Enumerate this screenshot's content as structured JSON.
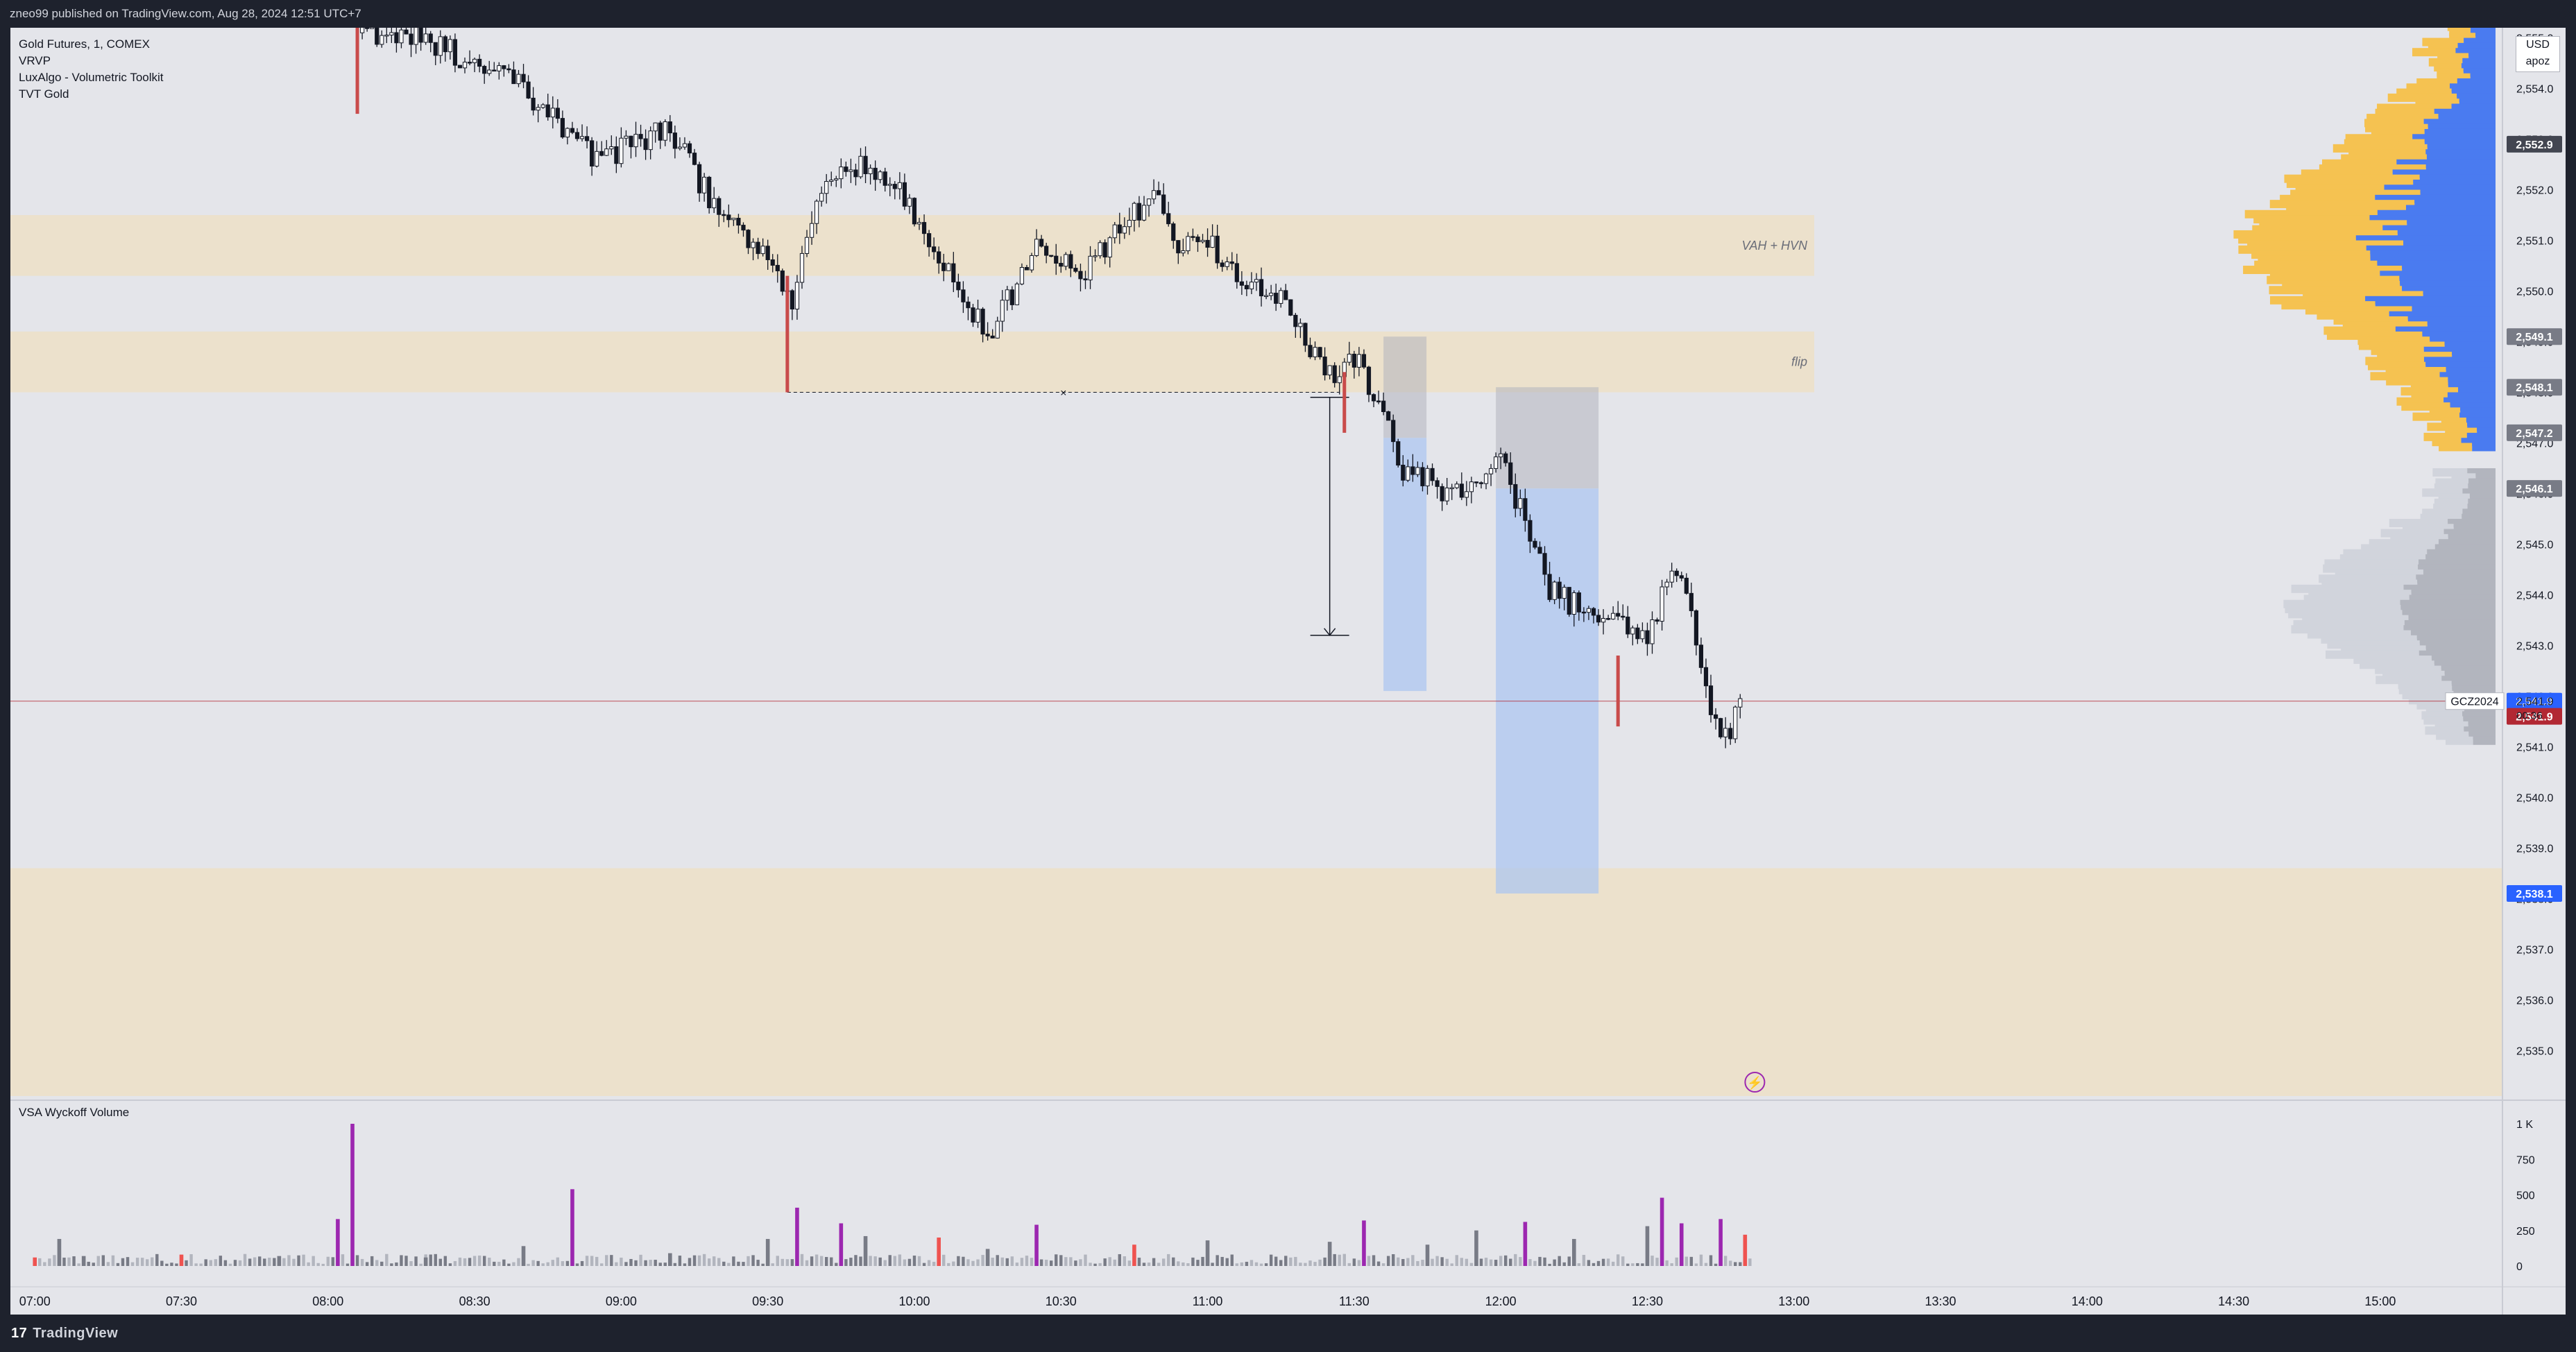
{
  "header": {
    "title": "zneo99 published on TradingView.com, Aug 28, 2024 12:51 UTC+7"
  },
  "legend": {
    "symbol": "Gold Futures, 1, COMEX",
    "indicators": [
      "VRVP",
      "LuxAlgo - Volumetric Toolkit",
      "TVT Gold"
    ]
  },
  "price_scale": {
    "currency": "USD",
    "mode": "apoz",
    "ticks": [
      "2,555.0",
      "2,554.0",
      "2,553.0",
      "2,552.0",
      "2,551.0",
      "2,550.0",
      "2,549.0",
      "2,548.0",
      "2,547.0",
      "2,546.0",
      "2,545.0",
      "2,544.0",
      "2,543.0",
      "2,542.0",
      "2,541.0",
      "2,540.0",
      "2,539.0",
      "2,538.0",
      "2,537.0",
      "2,536.0",
      "2,535.0"
    ],
    "badges": [
      {
        "price": 2552.9,
        "label": "2,552.9",
        "color": "#434651"
      },
      {
        "price": 2549.1,
        "label": "2,549.1",
        "color": "#787b86"
      },
      {
        "price": 2548.1,
        "label": "2,548.1",
        "color": "#787b86"
      },
      {
        "price": 2547.2,
        "label": "2,547.2",
        "color": "#787b86"
      },
      {
        "price": 2546.1,
        "label": "2,546.1",
        "color": "#787b86"
      },
      {
        "price": 2541.9,
        "label": "2,541.9",
        "color": "#2962ff"
      },
      {
        "price": 2541.6,
        "label": "2,541.9",
        "color": "#b22833"
      },
      {
        "price": 2538.1,
        "label": "2,538.1",
        "color": "#2962ff"
      }
    ],
    "last_price": {
      "symbol": "GCZ2024",
      "price": "2,541.9",
      "countdown": "00:36"
    }
  },
  "zones": [
    {
      "label": "VAH + HVN",
      "top": 2551.5,
      "bottom": 2550.3
    },
    {
      "label": "flip",
      "top": 2549.2,
      "bottom": 2548.0
    },
    {
      "label": "",
      "top": 2538.6,
      "bottom": 2534.1
    }
  ],
  "time_axis": {
    "labels": [
      "07:00",
      "07:30",
      "08:00",
      "08:30",
      "09:00",
      "09:30",
      "10:00",
      "10:30",
      "11:00",
      "11:30",
      "12:00",
      "12:30",
      "13:00",
      "13:30",
      "14:00",
      "14:30",
      "15:00"
    ]
  },
  "volume_pane": {
    "title": "VSA Wyckoff Volume",
    "ticks": [
      "1 K",
      "750",
      "500",
      "250",
      "0"
    ]
  },
  "colors": {
    "zone": "#ede0c7",
    "up_profile": "#f5c251",
    "down_profile": "#4a7bf0",
    "volume_climax": "#9c27b0",
    "volume_high": "#ef5350"
  },
  "footer": {
    "brand": "TradingView"
  },
  "chart_data": {
    "type": "candlestick",
    "x_range": [
      "06:55",
      "15:25"
    ],
    "ylim": [
      2534.1,
      2555.2
    ],
    "close_series": [
      {
        "t": "08:07",
        "v": 2555.1
      },
      {
        "t": "08:20",
        "v": 2555.0
      },
      {
        "t": "08:40",
        "v": 2554.0
      },
      {
        "t": "08:55",
        "v": 2552.6
      },
      {
        "t": "09:00",
        "v": 2552.8
      },
      {
        "t": "09:10",
        "v": 2553.2
      },
      {
        "t": "09:20",
        "v": 2551.5
      },
      {
        "t": "09:30",
        "v": 2550.8
      },
      {
        "t": "09:35",
        "v": 2549.8
      },
      {
        "t": "09:40",
        "v": 2551.6
      },
      {
        "t": "09:45",
        "v": 2552.6
      },
      {
        "t": "09:55",
        "v": 2552.2
      },
      {
        "t": "10:05",
        "v": 2550.7
      },
      {
        "t": "10:15",
        "v": 2549.1
      },
      {
        "t": "10:25",
        "v": 2550.8
      },
      {
        "t": "10:35",
        "v": 2550.4
      },
      {
        "t": "10:45",
        "v": 2551.6
      },
      {
        "t": "10:50",
        "v": 2551.8
      },
      {
        "t": "10:55",
        "v": 2550.8
      },
      {
        "t": "11:00",
        "v": 2551.0
      },
      {
        "t": "11:05",
        "v": 2550.3
      },
      {
        "t": "11:15",
        "v": 2549.8
      },
      {
        "t": "11:25",
        "v": 2548.3
      },
      {
        "t": "11:30",
        "v": 2548.7
      },
      {
        "t": "11:35",
        "v": 2547.7
      },
      {
        "t": "11:40",
        "v": 2546.5
      },
      {
        "t": "11:50",
        "v": 2546.0
      },
      {
        "t": "12:00",
        "v": 2546.6
      },
      {
        "t": "12:05",
        "v": 2545.5
      },
      {
        "t": "12:10",
        "v": 2544.1
      },
      {
        "t": "12:15",
        "v": 2543.8
      },
      {
        "t": "12:25",
        "v": 2543.5
      },
      {
        "t": "12:30",
        "v": 2543.0
      },
      {
        "t": "12:35",
        "v": 2544.7
      },
      {
        "t": "12:40",
        "v": 2543.2
      },
      {
        "t": "12:45",
        "v": 2541.0
      },
      {
        "t": "12:50",
        "v": 2541.9
      }
    ],
    "volume_series": [
      {
        "t": "07:00",
        "v": 60
      },
      {
        "t": "07:05",
        "v": 190
      },
      {
        "t": "07:10",
        "v": 70
      },
      {
        "t": "07:30",
        "v": 80
      },
      {
        "t": "07:50",
        "v": 70
      },
      {
        "t": "08:02",
        "v": 330
      },
      {
        "t": "08:05",
        "v": 1000
      },
      {
        "t": "08:20",
        "v": 60
      },
      {
        "t": "08:40",
        "v": 140
      },
      {
        "t": "08:50",
        "v": 540
      },
      {
        "t": "09:10",
        "v": 90
      },
      {
        "t": "09:30",
        "v": 190
      },
      {
        "t": "09:36",
        "v": 410
      },
      {
        "t": "09:45",
        "v": 300
      },
      {
        "t": "09:50",
        "v": 210
      },
      {
        "t": "10:05",
        "v": 200
      },
      {
        "t": "10:15",
        "v": 120
      },
      {
        "t": "10:25",
        "v": 290
      },
      {
        "t": "10:45",
        "v": 150
      },
      {
        "t": "11:00",
        "v": 180
      },
      {
        "t": "11:25",
        "v": 170
      },
      {
        "t": "11:32",
        "v": 320
      },
      {
        "t": "11:45",
        "v": 150
      },
      {
        "t": "11:55",
        "v": 250
      },
      {
        "t": "12:05",
        "v": 310
      },
      {
        "t": "12:15",
        "v": 190
      },
      {
        "t": "12:30",
        "v": 280
      },
      {
        "t": "12:33",
        "v": 480
      },
      {
        "t": "12:37",
        "v": 300
      },
      {
        "t": "12:45",
        "v": 330
      },
      {
        "t": "12:50",
        "v": 220
      }
    ]
  }
}
